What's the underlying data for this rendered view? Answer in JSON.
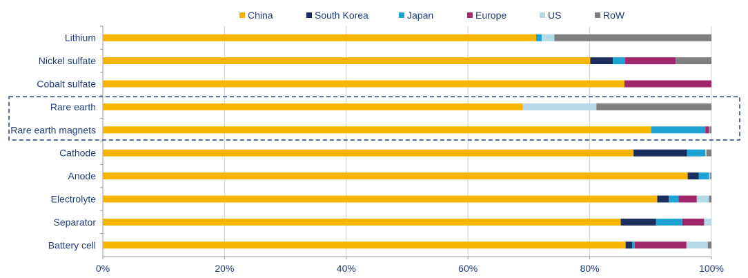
{
  "chart_data": {
    "type": "bar",
    "orientation": "horizontal",
    "stacked": true,
    "percent": true,
    "categories": [
      "Lithium",
      "Nickel sulfate",
      "Cobalt sulfate",
      "Rare earth",
      "Rare earth magnets",
      "Cathode",
      "Anode",
      "Electrolyte",
      "Separator",
      "Battery cell"
    ],
    "series": [
      {
        "name": "China",
        "color": "#F5B500",
        "values": [
          71.2,
          80.1,
          85.7,
          69.0,
          90.1,
          87.2,
          96.1,
          91.1,
          85.1,
          85.9
        ]
      },
      {
        "name": "South Korea",
        "color": "#1B2F5E",
        "values": [
          0,
          3.7,
          0,
          0,
          0,
          8.8,
          1.8,
          1.9,
          5.8,
          1.1
        ]
      },
      {
        "name": "Japan",
        "color": "#1EA2D4",
        "values": [
          0.9,
          2.0,
          0,
          0,
          8.9,
          3.0,
          1.7,
          1.6,
          4.3,
          0.4
        ]
      },
      {
        "name": "Europe",
        "color": "#A0286A",
        "values": [
          0,
          8.3,
          14.3,
          0,
          0.6,
          0,
          0,
          3.0,
          3.6,
          8.5
        ]
      },
      {
        "name": "US",
        "color": "#B5D9E6",
        "values": [
          2.1,
          0,
          0,
          12.1,
          0.1,
          0.2,
          0.2,
          2.0,
          1.2,
          3.5
        ]
      },
      {
        "name": "RoW",
        "color": "#7F7F7F",
        "values": [
          25.8,
          5.9,
          0,
          18.9,
          0.3,
          0.8,
          0.2,
          0.4,
          0,
          0.6
        ]
      }
    ],
    "xlim": [
      0,
      100
    ],
    "xticks": [
      "0%",
      "20%",
      "40%",
      "60%",
      "80%",
      "100%"
    ],
    "grid": "vertical",
    "legend_position": "top-center",
    "highlight_categories": [
      "Rare earth",
      "Rare earth magnets"
    ]
  }
}
